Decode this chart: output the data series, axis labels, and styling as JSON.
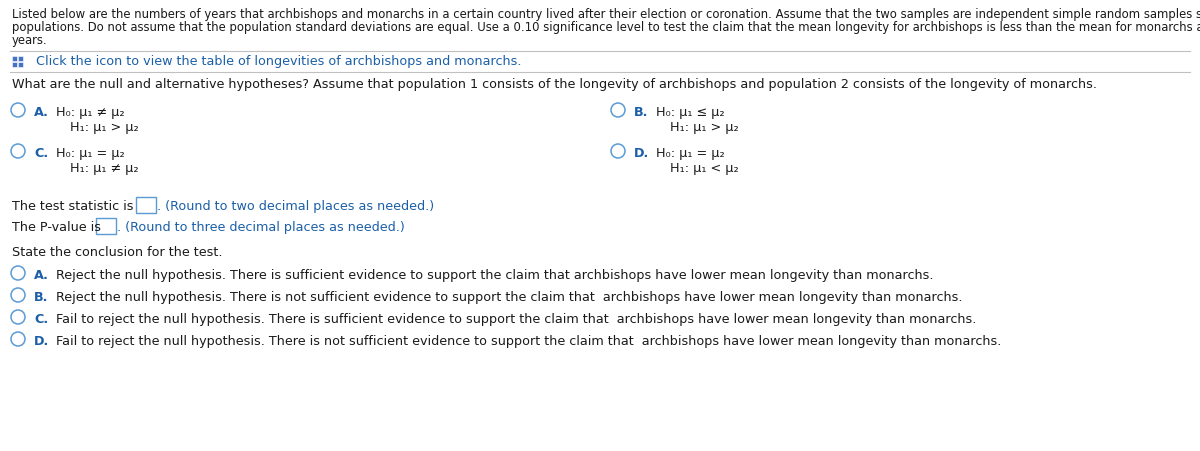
{
  "bg_color": "#ffffff",
  "header_line1": "Listed below are the numbers of years that archbishops and monarchs in a certain country lived after their election or coronation. Assume that the two samples are independent simple random samples selected from normally distributed",
  "header_line2": "populations. Do not assume that the population standard deviations are equal. Use a 0.10 significance level to test the claim that the mean longevity for archbishops is less than the mean for monarchs after coronation. All measurements are in",
  "header_line3": "years.",
  "icon_text": "  Click the icon to view the table of longevities of archbishops and monarchs.",
  "question_text": "What are the null and alternative hypotheses? Assume that population 1 consists of the longevity of archbishops and population 2 consists of the longevity of monarchs.",
  "optA1": "H₀: μ₁ ≠ μ₂",
  "optA2": "H₁: μ₁ > μ₂",
  "optB1": "H₀: μ₁ ≤ μ₂",
  "optB2": "H₁: μ₁ > μ₂",
  "optC1": "H₀: μ₁ = μ₂",
  "optC2": "H₁: μ₁ ≠ μ₂",
  "optD1": "H₀: μ₁ = μ₂",
  "optD2": "H₁: μ₁ < μ₂",
  "test_stat_pre": "The test statistic is",
  "test_stat_post": ". (Round to two decimal places as needed.)",
  "pvalue_pre": "The P-value is",
  "pvalue_post": ". (Round to three decimal places as needed.)",
  "conclusion_header": "State the conclusion for the test.",
  "concl_A": "Reject the null hypothesis. There is sufficient evidence to support the claim that archbishops have lower mean longevity than monarchs.",
  "concl_B": "Reject the null hypothesis. There is not sufficient evidence to support the claim that  archbishops have lower mean longevity than monarchs.",
  "concl_C": "Fail to reject the null hypothesis. There is sufficient evidence to support the claim that  archbishops have lower mean longevity than monarchs.",
  "concl_D": "Fail to reject the null hypothesis. There is not sufficient evidence to support the claim that  archbishops have lower mean longevity than monarchs.",
  "text_color": "#1a1a1a",
  "blue_color": "#1a5fa8",
  "circle_color": "#5b9bd5",
  "header_fontsize": 8.4,
  "body_fontsize": 9.2,
  "label_fontsize": 9.2,
  "icon_fontsize": 9.2,
  "concl_fontsize": 9.2
}
